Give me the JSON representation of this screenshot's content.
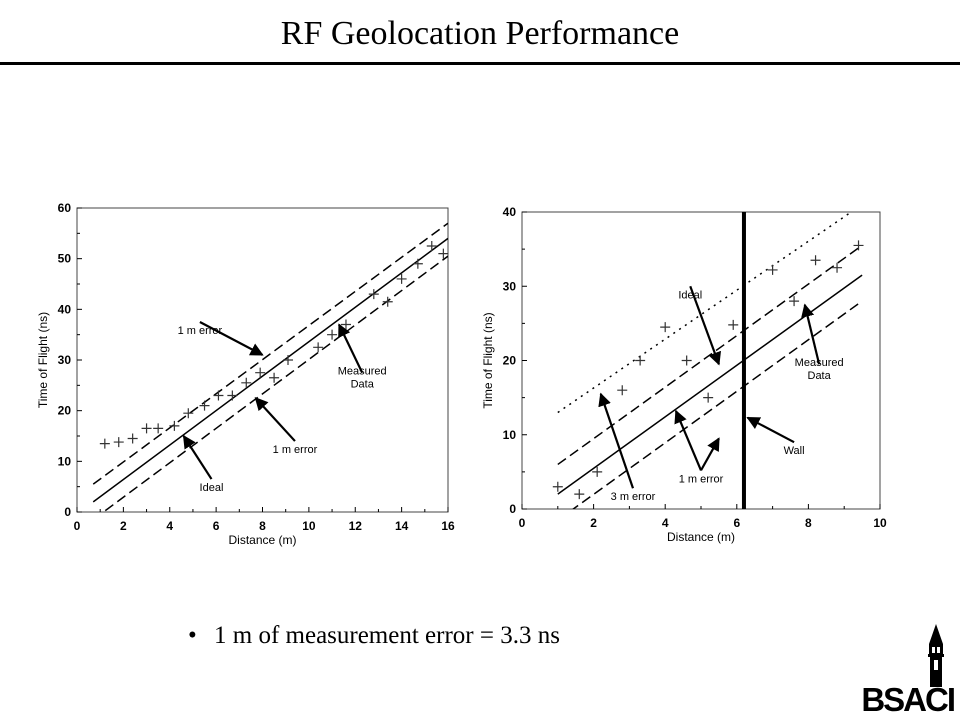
{
  "title": "RF Geolocation  Performance",
  "bullet": "1 m of measurement  error = 3.3 ns",
  "logo": {
    "text": "BSACI",
    "icon": "campanile-tower-icon"
  },
  "chart_data": [
    {
      "type": "line",
      "xlabel": "Distance (m)",
      "ylabel": "Time of Flight (ns)",
      "xlim": [
        0,
        16
      ],
      "ylim": [
        0,
        60
      ],
      "xticks": [
        0,
        2,
        4,
        6,
        8,
        10,
        12,
        14,
        16
      ],
      "yticks": [
        0,
        10,
        20,
        30,
        40,
        50,
        60
      ],
      "grid": false,
      "lines": [
        {
          "style": "solid",
          "x": [
            0.7,
            16
          ],
          "y": [
            2,
            54
          ]
        },
        {
          "style": "dashed",
          "x": [
            0.7,
            16
          ],
          "y": [
            5.5,
            57
          ]
        },
        {
          "style": "dashed",
          "x": [
            0.7,
            16
          ],
          "y": [
            -1.5,
            50.5
          ]
        }
      ],
      "measured": {
        "x": [
          1.2,
          1.8,
          2.4,
          3.0,
          3.5,
          4.2,
          4.8,
          5.5,
          6.1,
          6.7,
          7.3,
          7.9,
          8.5,
          9.1,
          10.4,
          11.0,
          11.6,
          12.8,
          13.4,
          14.0,
          14.7,
          15.3,
          15.8
        ],
        "y": [
          13.5,
          13.8,
          14.5,
          16.5,
          16.5,
          17.0,
          19.5,
          21.0,
          23.0,
          23.0,
          25.5,
          27.5,
          26.5,
          30.0,
          32.5,
          35.0,
          37.0,
          43.0,
          41.5,
          46.0,
          49.0,
          52.5,
          51.0
        ]
      },
      "annotations": [
        {
          "text": "1 m error",
          "lx": 5.3,
          "ly": 37.5,
          "ax": 8.0,
          "ay": 31.0
        },
        {
          "text": "Measured",
          "text2": "Data",
          "lx": 12.3,
          "ly": 27.5,
          "ax": 11.3,
          "ay": 37.0
        },
        {
          "text": "1 m error",
          "lx": 9.4,
          "ly": 14.0,
          "ax": 7.7,
          "ay": 22.5
        },
        {
          "text": "Ideal",
          "lx": 5.8,
          "ly": 6.5,
          "ax": 4.6,
          "ay": 15.0
        }
      ]
    },
    {
      "type": "line",
      "xlabel": "Distance (m)",
      "ylabel": "Time of Flight (ns)",
      "xlim": [
        0,
        10
      ],
      "ylim": [
        0,
        40
      ],
      "xticks": [
        0,
        2,
        4,
        6,
        8,
        10
      ],
      "yticks": [
        0,
        10,
        20,
        30,
        40
      ],
      "grid": false,
      "lines": [
        {
          "style": "solid",
          "x": [
            1.0,
            9.5
          ],
          "y": [
            2.0,
            31.5
          ]
        },
        {
          "style": "dashed",
          "x": [
            1.0,
            9.5
          ],
          "y": [
            6.0,
            35.5
          ]
        },
        {
          "style": "dashed",
          "x": [
            1.0,
            9.5
          ],
          "y": [
            -1.5,
            28.0
          ]
        },
        {
          "style": "dotted",
          "x": [
            1.0,
            9.5
          ],
          "y": [
            13.0,
            41.0
          ]
        }
      ],
      "wall": {
        "x": 6.2
      },
      "measured": {
        "x": [
          1.0,
          1.6,
          2.1,
          2.8,
          3.3,
          4.0,
          4.6,
          5.2,
          5.9,
          7.0,
          7.6,
          8.2,
          8.8,
          9.4
        ],
        "y": [
          3.0,
          2.0,
          5.0,
          16.0,
          20.0,
          24.5,
          20.0,
          15.0,
          24.8,
          32.2,
          28.0,
          33.5,
          32.5,
          35.5
        ]
      },
      "annotations": [
        {
          "text": "Ideal",
          "lx": 4.7,
          "ly": 30.0,
          "ax": 5.5,
          "ay": 19.5
        },
        {
          "text": "Measured",
          "text2": "Data",
          "lx": 8.3,
          "ly": 19.5,
          "ax": 7.9,
          "ay": 27.5
        },
        {
          "text": "Wall",
          "lx": 7.6,
          "ly": 9.0,
          "ax": 6.3,
          "ay": 12.3
        },
        {
          "text": "1 m error",
          "lx": 5.0,
          "ly": 5.2,
          "ax": 4.3,
          "ay": 13.2
        },
        {
          "text": "",
          "lx": 5.0,
          "ly": 5.2,
          "ax": 5.5,
          "ay": 9.5
        },
        {
          "text": "3 m error",
          "lx": 3.1,
          "ly": 2.8,
          "ax": 2.2,
          "ay": 15.5
        }
      ]
    }
  ]
}
